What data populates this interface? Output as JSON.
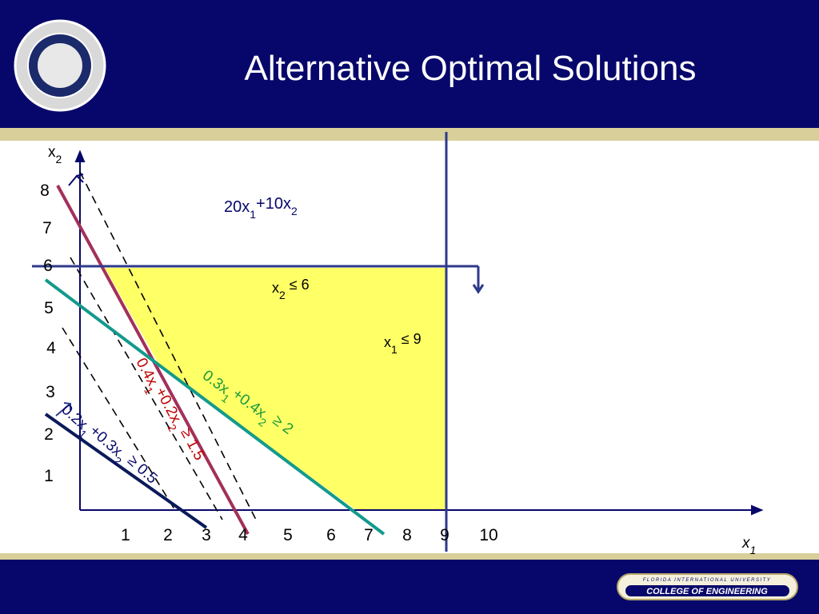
{
  "header": {
    "title": "Alternative Optimal Solutions"
  },
  "axes": {
    "x_label": [
      "x",
      "1"
    ],
    "y_label": [
      "x",
      "2"
    ],
    "x_ticks": [
      1,
      2,
      3,
      4,
      5,
      6,
      7,
      8,
      9,
      10
    ],
    "y_ticks": [
      1,
      2,
      3,
      4,
      5,
      6,
      7,
      8
    ]
  },
  "objective": [
    "20x",
    "1",
    "+10x",
    "2"
  ],
  "constraints": [
    [
      "x",
      "2",
      " ≤ 6"
    ],
    [
      "x",
      "1",
      " ≤ 9"
    ],
    [
      "0.3x",
      "1",
      "+0.4x",
      "2",
      " ≥ 2"
    ],
    [
      "0.4x",
      "1",
      "+0.2x",
      "2",
      " ≥ 1.5"
    ],
    [
      "0.2x",
      "1",
      "+0.3x",
      "2",
      " ≥ 0.5"
    ]
  ],
  "footer": {
    "university": "FLORIDA INTERNATIONAL UNIVERSITY",
    "college": "COLLEGE OF ENGINEERING"
  }
}
